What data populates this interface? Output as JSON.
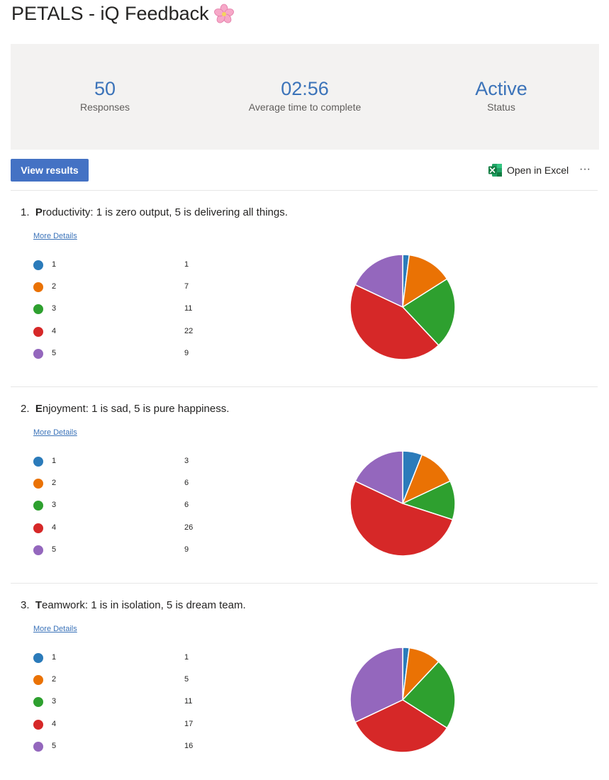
{
  "header": {
    "title": "PETALS - iQ Feedback",
    "emoji": "🌸"
  },
  "stats": [
    {
      "value": "50",
      "label": "Responses"
    },
    {
      "value": "02:56",
      "label": "Average time to complete"
    },
    {
      "value": "Active",
      "label": "Status"
    }
  ],
  "toolbar": {
    "view_results_label": "View results",
    "open_in_excel_label": "Open in Excel",
    "more_options_label": "···"
  },
  "colors": {
    "accent": "#4472c4",
    "series": [
      "#2b7bba",
      "#ea7204",
      "#2ea02f",
      "#d62828",
      "#9467bd"
    ]
  },
  "questions": [
    {
      "number": "1.",
      "title_lead": "P",
      "title_rest": "roductivity: 1 is zero output, 5 is delivering all things.",
      "more_details": "More Details",
      "options": [
        {
          "label": "1",
          "count": "1"
        },
        {
          "label": "2",
          "count": "7"
        },
        {
          "label": "3",
          "count": "11"
        },
        {
          "label": "4",
          "count": "22"
        },
        {
          "label": "5",
          "count": "9"
        }
      ]
    },
    {
      "number": "2.",
      "title_lead": "E",
      "title_rest": "njoyment: 1 is sad, 5 is pure happiness.",
      "more_details": "More Details",
      "options": [
        {
          "label": "1",
          "count": "3"
        },
        {
          "label": "2",
          "count": "6"
        },
        {
          "label": "3",
          "count": "6"
        },
        {
          "label": "4",
          "count": "26"
        },
        {
          "label": "5",
          "count": "9"
        }
      ]
    },
    {
      "number": "3.",
      "title_lead": "T",
      "title_rest": "eamwork: 1 is in isolation, 5 is dream team.",
      "more_details": "More Details",
      "options": [
        {
          "label": "1",
          "count": "1"
        },
        {
          "label": "2",
          "count": "5"
        },
        {
          "label": "3",
          "count": "11"
        },
        {
          "label": "4",
          "count": "17"
        },
        {
          "label": "5",
          "count": "16"
        }
      ]
    }
  ],
  "chart_data": [
    {
      "type": "pie",
      "categories": [
        "1",
        "2",
        "3",
        "4",
        "5"
      ],
      "values": [
        1,
        7,
        11,
        22,
        9
      ]
    },
    {
      "type": "pie",
      "categories": [
        "1",
        "2",
        "3",
        "4",
        "5"
      ],
      "values": [
        3,
        6,
        6,
        26,
        9
      ]
    },
    {
      "type": "pie",
      "categories": [
        "1",
        "2",
        "3",
        "4",
        "5"
      ],
      "values": [
        1,
        5,
        11,
        17,
        16
      ]
    }
  ]
}
